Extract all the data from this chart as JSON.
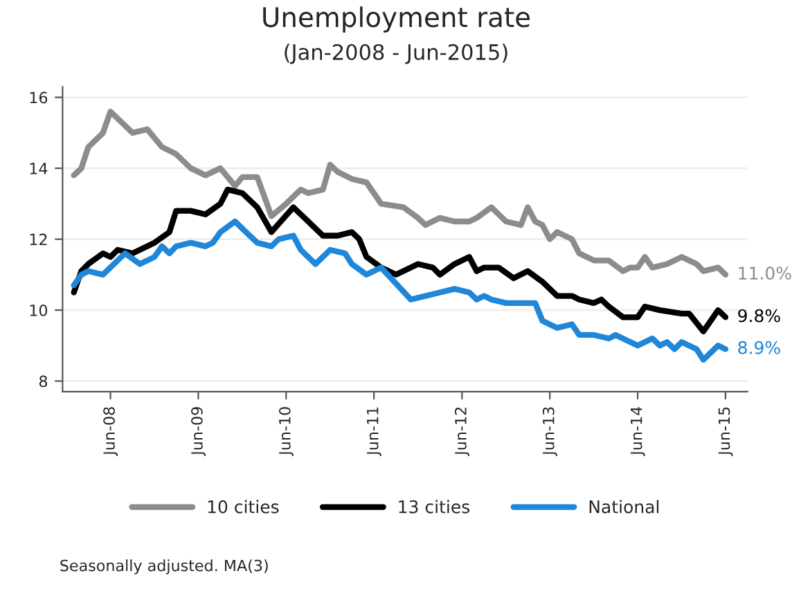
{
  "chart_data": {
    "type": "line",
    "title": "Unemployment rate",
    "subtitle": "(Jan-2008 - Jun-2015)",
    "series": [
      {
        "name": "10 cities",
        "color": "#8c8c8c",
        "x": [
          "2008-01",
          "2008-02",
          "2008-03",
          "2008-05",
          "2008-06",
          "2008-09",
          "2008-11",
          "2009-01",
          "2009-03",
          "2009-05",
          "2009-07",
          "2009-09",
          "2009-11",
          "2009-12",
          "2010-02",
          "2010-04",
          "2010-06",
          "2010-08",
          "2010-09",
          "2010-11",
          "2010-12",
          "2011-01",
          "2011-03",
          "2011-05",
          "2011-07",
          "2011-10",
          "2011-12",
          "2012-01",
          "2012-03",
          "2012-05",
          "2012-07",
          "2012-08",
          "2012-10",
          "2012-12",
          "2013-02",
          "2013-03",
          "2013-04",
          "2013-05",
          "2013-06",
          "2013-07",
          "2013-09",
          "2013-10",
          "2013-12",
          "2014-02",
          "2014-04",
          "2014-05",
          "2014-06",
          "2014-07",
          "2014-08",
          "2014-10",
          "2014-12",
          "2015-02",
          "2015-03",
          "2015-05",
          "2015-06"
        ],
        "values": [
          13.8,
          14.0,
          14.6,
          15.0,
          15.6,
          15.0,
          15.1,
          14.6,
          14.4,
          14.0,
          13.8,
          14.0,
          13.5,
          13.75,
          13.75,
          12.65,
          13.0,
          13.4,
          13.3,
          13.4,
          14.1,
          13.9,
          13.7,
          13.6,
          13.0,
          12.9,
          12.6,
          12.4,
          12.6,
          12.5,
          12.5,
          12.6,
          12.9,
          12.5,
          12.4,
          12.9,
          12.5,
          12.4,
          12.0,
          12.2,
          12.0,
          11.6,
          11.4,
          11.4,
          11.1,
          11.2,
          11.2,
          11.5,
          11.2,
          11.3,
          11.5,
          11.3,
          11.1,
          11.2,
          11.0
        ]
      },
      {
        "name": "13 cities",
        "color": "#000000",
        "x": [
          "2008-01",
          "2008-02",
          "2008-03",
          "2008-05",
          "2008-06",
          "2008-07",
          "2008-09",
          "2008-10",
          "2008-12",
          "2009-02",
          "2009-03",
          "2009-05",
          "2009-07",
          "2009-09",
          "2009-10",
          "2009-12",
          "2010-02",
          "2010-04",
          "2010-07",
          "2010-09",
          "2010-11",
          "2011-01",
          "2011-03",
          "2011-04",
          "2011-05",
          "2011-07",
          "2011-09",
          "2011-12",
          "2012-02",
          "2012-03",
          "2012-05",
          "2012-07",
          "2012-08",
          "2012-09",
          "2012-11",
          "2013-01",
          "2013-03",
          "2013-05",
          "2013-07",
          "2013-09",
          "2013-10",
          "2013-12",
          "2014-01",
          "2014-02",
          "2014-04",
          "2014-06",
          "2014-07",
          "2014-09",
          "2014-12",
          "2015-01",
          "2015-03",
          "2015-05",
          "2015-06"
        ],
        "values": [
          10.5,
          11.1,
          11.3,
          11.6,
          11.5,
          11.7,
          11.6,
          11.7,
          11.9,
          12.2,
          12.8,
          12.8,
          12.7,
          13.0,
          13.4,
          13.3,
          12.9,
          12.2,
          12.9,
          12.5,
          12.1,
          12.1,
          12.2,
          12.0,
          11.5,
          11.2,
          11.0,
          11.3,
          11.2,
          11.0,
          11.3,
          11.5,
          11.1,
          11.2,
          11.2,
          10.9,
          11.1,
          10.8,
          10.4,
          10.4,
          10.3,
          10.2,
          10.3,
          10.1,
          9.8,
          9.8,
          10.1,
          10.0,
          9.9,
          9.9,
          9.4,
          10.0,
          9.8
        ]
      },
      {
        "name": "National",
        "color": "#1f86d8",
        "x": [
          "2008-01",
          "2008-02",
          "2008-03",
          "2008-05",
          "2008-07",
          "2008-08",
          "2008-10",
          "2008-12",
          "2009-01",
          "2009-02",
          "2009-03",
          "2009-05",
          "2009-07",
          "2009-08",
          "2009-09",
          "2009-11",
          "2009-12",
          "2010-02",
          "2010-04",
          "2010-05",
          "2010-07",
          "2010-08",
          "2010-10",
          "2010-12",
          "2011-02",
          "2011-03",
          "2011-05",
          "2011-07",
          "2011-11",
          "2012-01",
          "2012-03",
          "2012-05",
          "2012-07",
          "2012-08",
          "2012-09",
          "2012-10",
          "2012-12",
          "2013-03",
          "2013-04",
          "2013-05",
          "2013-07",
          "2013-09",
          "2013-10",
          "2013-12",
          "2014-02",
          "2014-03",
          "2014-06",
          "2014-08",
          "2014-09",
          "2014-10",
          "2014-11",
          "2014-12",
          "2015-02",
          "2015-03",
          "2015-05",
          "2015-06"
        ],
        "values": [
          10.7,
          11.0,
          11.1,
          11.0,
          11.4,
          11.6,
          11.3,
          11.5,
          11.8,
          11.6,
          11.8,
          11.9,
          11.8,
          11.9,
          12.2,
          12.5,
          12.3,
          11.9,
          11.8,
          12.0,
          12.1,
          11.7,
          11.3,
          11.7,
          11.6,
          11.3,
          11.0,
          11.2,
          10.3,
          10.4,
          10.5,
          10.6,
          10.5,
          10.3,
          10.4,
          10.3,
          10.2,
          10.2,
          10.2,
          9.7,
          9.5,
          9.6,
          9.3,
          9.3,
          9.2,
          9.3,
          9.0,
          9.2,
          9.0,
          9.1,
          8.9,
          9.1,
          8.9,
          8.6,
          9.0,
          8.9
        ]
      }
    ],
    "xlim": [
      "2007-11-15",
      "2015-09-01"
    ],
    "xticks": [
      {
        "value": "2008-06",
        "label": "Jun-08"
      },
      {
        "value": "2009-06",
        "label": "Jun-09"
      },
      {
        "value": "2010-06",
        "label": "Jun-10"
      },
      {
        "value": "2011-06",
        "label": "Jun-11"
      },
      {
        "value": "2012-06",
        "label": "Jun-12"
      },
      {
        "value": "2013-06",
        "label": "Jun-13"
      },
      {
        "value": "2014-06",
        "label": "Jun-14"
      },
      {
        "value": "2015-06",
        "label": "Jun-15"
      }
    ],
    "ylim": [
      7.7,
      16.3
    ],
    "yticks": [
      8,
      10,
      12,
      14,
      16
    ],
    "grid": "y",
    "legend": "bottom",
    "line_style": "solid",
    "annotations": [
      {
        "text": "11.0%",
        "x": "2015-06",
        "y": 11.0
      },
      {
        "text": "9.8%",
        "x": "2015-06",
        "y": 9.8
      },
      {
        "text": "8.9%",
        "x": "2015-06",
        "y": 8.9
      },
      "Seasonally adjusted. MA(3)"
    ]
  }
}
